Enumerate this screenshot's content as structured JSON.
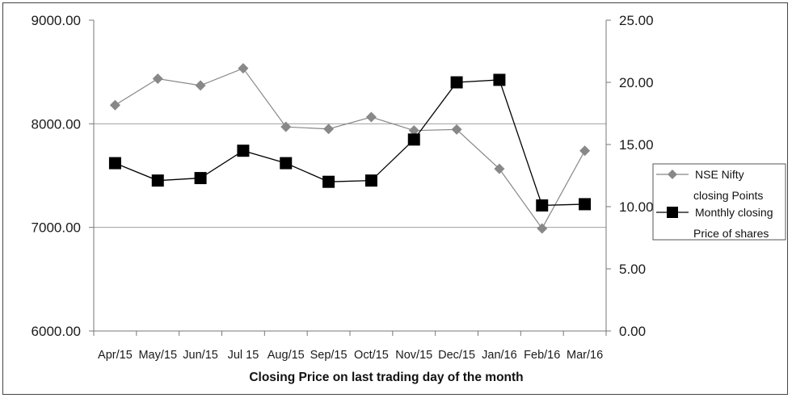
{
  "chart_data": {
    "type": "line",
    "title": "",
    "xlabel": "Closing Price on last trading day of the month",
    "categories": [
      "Apr/15",
      "May/15",
      "Jun/15",
      "Jul 15",
      "Aug/15",
      "Sep/15",
      "Oct/15",
      "Nov/15",
      "Dec/15",
      "Jan/16",
      "Feb/16",
      "Mar/16"
    ],
    "y_left": {
      "min": 6000,
      "max": 9000,
      "ticks": [
        "6000.00",
        "7000.00",
        "8000.00",
        "9000.00"
      ]
    },
    "y_right": {
      "min": 0,
      "max": 25,
      "ticks": [
        "0.00",
        "5.00",
        "10.00",
        "15.00",
        "20.00",
        "25.00"
      ]
    },
    "gridlines": "horizontal",
    "legend_position": "right",
    "series": [
      {
        "name_lines": [
          "NSE Nifty",
          "closing Points"
        ],
        "axis": "left",
        "marker": "diamond",
        "color": "#888888",
        "values": [
          8180,
          8435,
          8370,
          8535,
          7970,
          7950,
          8065,
          7935,
          7945,
          7565,
          6990,
          7740
        ]
      },
      {
        "name_lines": [
          "Monthly closing",
          "Price of shares"
        ],
        "axis": "right",
        "marker": "square",
        "color": "#000000",
        "values": [
          13.5,
          12.1,
          12.3,
          14.5,
          13.5,
          12.0,
          12.1,
          15.4,
          20.0,
          20.2,
          10.1,
          10.2
        ]
      }
    ]
  }
}
